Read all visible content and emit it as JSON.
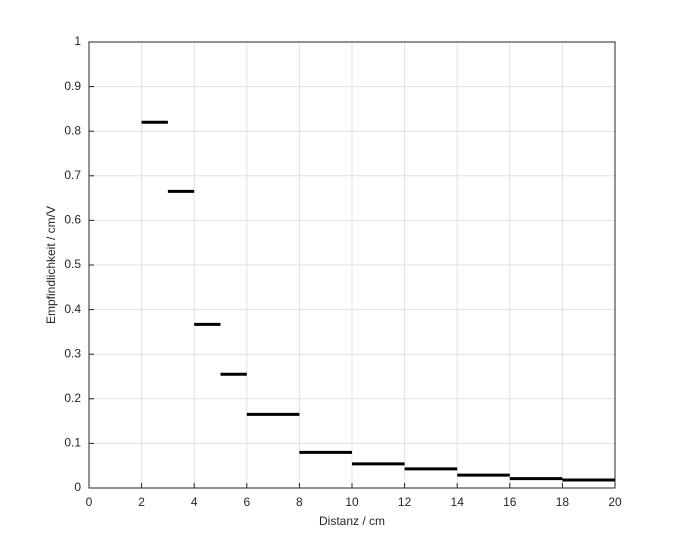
{
  "chart_data": {
    "type": "segment",
    "xlabel": "Distanz / cm",
    "ylabel": "Empfindlichkeit / cm/V",
    "x_start": [
      2,
      3,
      4,
      5,
      6,
      8,
      10,
      12,
      14,
      16,
      18
    ],
    "x_end": [
      3,
      4,
      5,
      6,
      8,
      10,
      12,
      14,
      16,
      18,
      20
    ],
    "values": [
      0.82,
      0.665,
      0.367,
      0.255,
      0.165,
      0.08,
      0.054,
      0.043,
      0.029,
      0.021,
      0.018
    ],
    "color": "#000000",
    "xlim": [
      0,
      20
    ],
    "xticks": [
      0,
      2,
      4,
      6,
      8,
      10,
      12,
      14,
      16,
      18,
      20
    ],
    "ylim": [
      0,
      1
    ],
    "yticks": [
      0,
      0.1,
      0.2,
      0.3,
      0.4,
      0.5,
      0.6,
      0.7,
      0.8,
      0.9,
      1
    ],
    "grid": true
  }
}
